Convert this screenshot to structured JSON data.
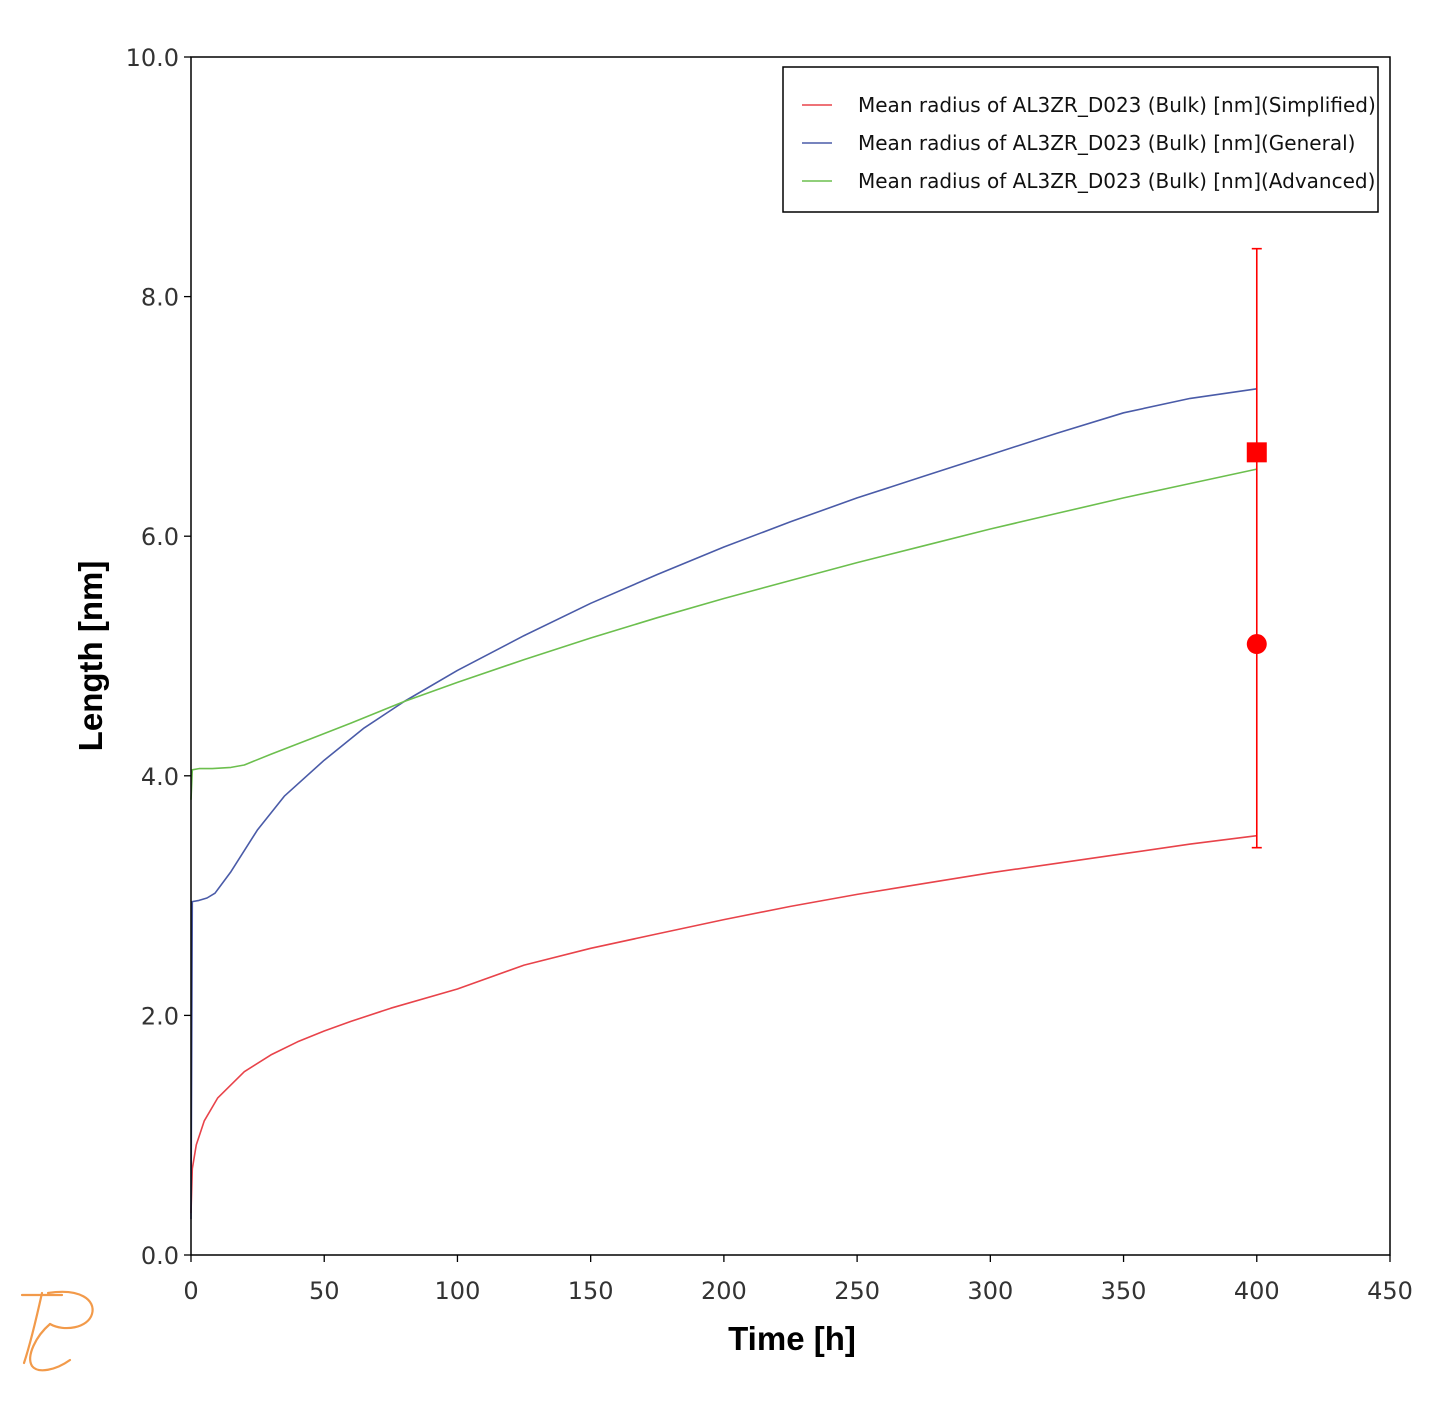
{
  "chart_data": {
    "type": "line",
    "title": "",
    "xlabel": "Time [h]",
    "ylabel": "Length [nm]",
    "xlim": [
      0,
      450
    ],
    "ylim": [
      0,
      10
    ],
    "x_ticks": [
      0,
      50,
      100,
      150,
      200,
      250,
      300,
      350,
      400,
      450
    ],
    "x_tick_labels": [
      "0",
      "50",
      "100",
      "150",
      "200",
      "250",
      "300",
      "350",
      "400",
      "450"
    ],
    "y_ticks": [
      0,
      2,
      4,
      6,
      8,
      10
    ],
    "y_tick_labels": [
      "0.0",
      "2.0",
      "4.0",
      "6.0",
      "8.0",
      "10.0"
    ],
    "grid": false,
    "legend_position": "top-right",
    "series": [
      {
        "name": "Mean radius of AL3ZR_D023 (Bulk) [nm](Simplified)",
        "color": "#e8434a",
        "x": [
          0,
          0.5,
          2,
          5,
          10,
          20,
          30,
          40,
          50,
          60,
          75,
          100,
          125,
          150,
          175,
          200,
          225,
          250,
          275,
          300,
          325,
          350,
          375,
          400
        ],
        "y": [
          0.35,
          0.72,
          0.92,
          1.12,
          1.31,
          1.53,
          1.67,
          1.78,
          1.87,
          1.95,
          2.06,
          2.22,
          2.42,
          2.56,
          2.68,
          2.8,
          2.91,
          3.01,
          3.1,
          3.19,
          3.27,
          3.35,
          3.43,
          3.5
        ]
      },
      {
        "name": "Mean radius of AL3ZR_D023 (Bulk) [nm](General)",
        "color": "#4a5ba8",
        "x": [
          0,
          0.5,
          3,
          6,
          9,
          15,
          25,
          35,
          50,
          65,
          80,
          100,
          125,
          150,
          175,
          200,
          225,
          250,
          275,
          300,
          325,
          350,
          375,
          400
        ],
        "y": [
          0.3,
          2.95,
          2.96,
          2.98,
          3.02,
          3.2,
          3.55,
          3.83,
          4.13,
          4.4,
          4.62,
          4.88,
          5.17,
          5.44,
          5.68,
          5.91,
          6.12,
          6.32,
          6.5,
          6.68,
          6.86,
          7.03,
          7.15,
          7.23
        ]
      },
      {
        "name": "Mean radius of AL3ZR_D023 (Bulk) [nm](Advanced)",
        "color": "#6cbf4e",
        "x": [
          0,
          0.5,
          3,
          8,
          15,
          20,
          30,
          45,
          60,
          80,
          100,
          125,
          150,
          175,
          200,
          225,
          250,
          275,
          300,
          325,
          350,
          375,
          400
        ],
        "y": [
          3.8,
          4.05,
          4.06,
          4.06,
          4.07,
          4.09,
          4.18,
          4.31,
          4.44,
          4.62,
          4.78,
          4.97,
          5.15,
          5.32,
          5.48,
          5.63,
          5.78,
          5.92,
          6.06,
          6.19,
          6.32,
          6.44,
          6.56
        ]
      }
    ],
    "experimental_points": [
      {
        "marker": "square",
        "x": 400,
        "y": 6.7,
        "color": "#ff0000"
      },
      {
        "marker": "circle",
        "x": 400,
        "y": 5.1,
        "color": "#ff0000"
      }
    ],
    "error_bar": {
      "x": 400,
      "low": 3.4,
      "high": 8.4,
      "color": "#ff0000"
    }
  },
  "logo": {
    "name": "thermo-calc-logo-icon",
    "color": "#f29a4a"
  }
}
